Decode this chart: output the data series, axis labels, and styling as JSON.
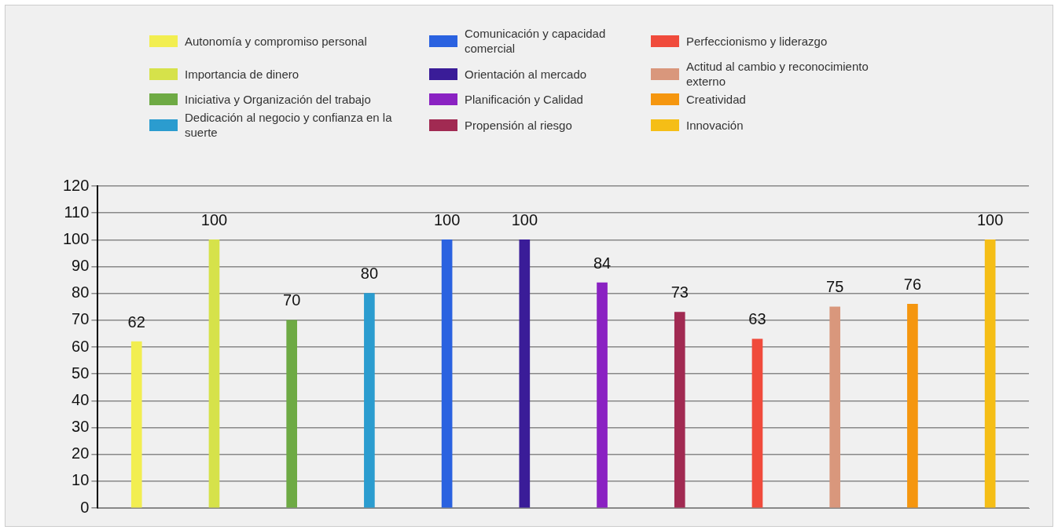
{
  "chart_data": {
    "type": "bar",
    "categories": [
      null,
      null,
      null,
      null,
      null,
      null,
      null,
      null,
      null,
      null,
      null,
      null
    ],
    "series": [
      {
        "name": "Autonomía y compromiso personal",
        "color": "#f2ee50",
        "values": [
          62,
          null,
          null,
          null,
          null,
          null,
          null,
          null,
          null,
          null,
          null,
          null
        ]
      },
      {
        "name": "Importancia de dinero",
        "color": "#d6e24a",
        "values": [
          null,
          100,
          null,
          null,
          null,
          null,
          null,
          null,
          null,
          null,
          null,
          null
        ]
      },
      {
        "name": "Iniciativa y Organización del trabajo",
        "color": "#6eaa44",
        "values": [
          null,
          null,
          70,
          null,
          null,
          null,
          null,
          null,
          null,
          null,
          null,
          null
        ]
      },
      {
        "name": "Dedicación al negocio y confianza en la suerte",
        "color": "#2b9ccf",
        "values": [
          null,
          null,
          null,
          80,
          null,
          null,
          null,
          null,
          null,
          null,
          null,
          null
        ]
      },
      {
        "name": "Comunicación y capacidad comercial",
        "color": "#2a62e0",
        "values": [
          null,
          null,
          null,
          null,
          100,
          null,
          null,
          null,
          null,
          null,
          null,
          null
        ]
      },
      {
        "name": "Orientación al mercado",
        "color": "#3a1c98",
        "values": [
          null,
          null,
          null,
          null,
          null,
          100,
          null,
          null,
          null,
          null,
          null,
          null
        ]
      },
      {
        "name": "Planificación y Calidad",
        "color": "#8a22c2",
        "values": [
          null,
          null,
          null,
          null,
          null,
          null,
          84,
          null,
          null,
          null,
          null,
          null
        ]
      },
      {
        "name": "Propensión al riesgo",
        "color": "#a12a52",
        "values": [
          null,
          null,
          null,
          null,
          null,
          null,
          null,
          73,
          null,
          null,
          null,
          null
        ]
      },
      {
        "name": "Perfeccionismo y liderazgo",
        "color": "#f04b3c",
        "values": [
          null,
          null,
          null,
          null,
          null,
          null,
          null,
          null,
          63,
          null,
          null,
          null
        ]
      },
      {
        "name": "Actitud al cambio y reconocimiento externo",
        "color": "#d9977c",
        "values": [
          null,
          null,
          null,
          null,
          null,
          null,
          null,
          null,
          null,
          75,
          null,
          null
        ]
      },
      {
        "name": "Creatividad",
        "color": "#f5960f",
        "values": [
          null,
          null,
          null,
          null,
          null,
          null,
          null,
          null,
          null,
          null,
          76,
          null
        ]
      },
      {
        "name": "Innovación",
        "color": "#f5be16",
        "values": [
          null,
          null,
          null,
          null,
          null,
          null,
          null,
          null,
          null,
          null,
          null,
          100
        ]
      }
    ],
    "ylim": [
      0,
      120
    ],
    "yticks": [
      0,
      10,
      20,
      30,
      40,
      50,
      60,
      70,
      80,
      90,
      100,
      110,
      120
    ],
    "grid": "y",
    "legend": "top",
    "data_labels": true
  }
}
